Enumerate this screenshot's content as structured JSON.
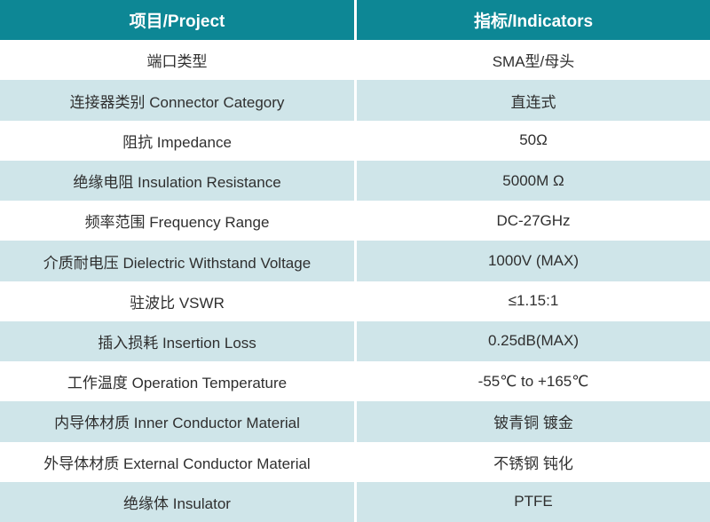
{
  "table": {
    "header": {
      "project": "项目/Project",
      "indicators": "指标/Indicators"
    },
    "rows": [
      {
        "label": "端口类型",
        "value": "SMA型/母头"
      },
      {
        "label": "连接器类别 Connector Category",
        "value": "直连式"
      },
      {
        "label": "阻抗 Impedance",
        "value": "50Ω"
      },
      {
        "label": "绝缘电阻 Insulation Resistance",
        "value": "5000M Ω"
      },
      {
        "label": "频率范围 Frequency Range",
        "value": "DC-27GHz"
      },
      {
        "label": "介质耐电压 Dielectric Withstand Voltage",
        "value": "1000V (MAX)"
      },
      {
        "label": "驻波比 VSWR",
        "value": "≤1.15:1"
      },
      {
        "label": "插入损耗 Insertion Loss",
        "value": "0.25dB(MAX)"
      },
      {
        "label": "工作温度 Operation Temperature",
        "value": "-55℃ to +165℃"
      },
      {
        "label": "内导体材质 Inner Conductor Material",
        "value": "铍青铜 镀金"
      },
      {
        "label": "外导体材质 External Conductor Material",
        "value": "不锈钢 钝化"
      },
      {
        "label": "绝缘体 Insulator",
        "value": "PTFE"
      }
    ],
    "colors": {
      "header_bg": "#0d8795",
      "header_text": "#ffffff",
      "alt_row_bg": "#cfe5e9",
      "row_bg": "#ffffff",
      "body_text": "#2f2f2f"
    }
  }
}
